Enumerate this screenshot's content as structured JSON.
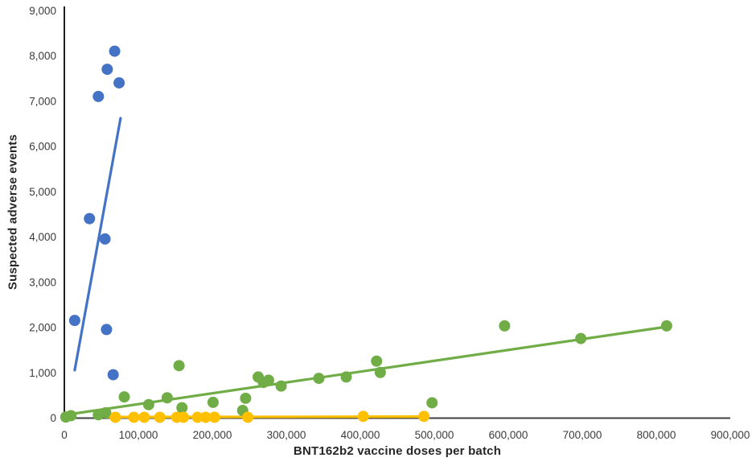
{
  "chart_data": {
    "type": "scatter",
    "title": "",
    "xlabel": "BNT162b2 vaccine doses per batch",
    "ylabel": "Suspected adverse events",
    "xlim": [
      0,
      900000
    ],
    "ylim": [
      0,
      9000
    ],
    "x_ticks": [
      0,
      100000,
      200000,
      300000,
      400000,
      500000,
      600000,
      700000,
      800000,
      900000
    ],
    "y_ticks": [
      0,
      1000,
      2000,
      3000,
      4000,
      5000,
      6000,
      7000,
      8000,
      9000
    ],
    "grid": false,
    "legend": "none",
    "background_color": "#ffffff",
    "x_axis_color": "#404040",
    "y_axis_color": "#1f1f1f",
    "tick_label_color": "#3b3b3b",
    "series": [
      {
        "name": "blue",
        "color": "#4472C4",
        "marker": "circle",
        "marker_radius": 7,
        "trendline": {
          "x": [
            14000,
            76000
          ],
          "y": [
            1050,
            6620
          ]
        },
        "points": [
          [
            14000,
            2150
          ],
          [
            34000,
            4400
          ],
          [
            46000,
            7100
          ],
          [
            55000,
            3950
          ],
          [
            57000,
            1950
          ],
          [
            58000,
            7700
          ],
          [
            66000,
            950
          ],
          [
            68000,
            8100
          ],
          [
            74000,
            7400
          ]
        ]
      },
      {
        "name": "green",
        "color": "#70AD47",
        "marker": "circle",
        "marker_radius": 7,
        "trendline": {
          "x": [
            0,
            814000
          ],
          "y": [
            60,
            2010
          ]
        },
        "points": [
          [
            2000,
            15
          ],
          [
            9000,
            45
          ],
          [
            46000,
            65
          ],
          [
            56000,
            110
          ],
          [
            81000,
            460
          ],
          [
            114000,
            290
          ],
          [
            139000,
            440
          ],
          [
            155000,
            1150
          ],
          [
            159000,
            220
          ],
          [
            201000,
            340
          ],
          [
            241000,
            160
          ],
          [
            245000,
            430
          ],
          [
            262000,
            900
          ],
          [
            269000,
            780
          ],
          [
            276000,
            830
          ],
          [
            293000,
            700
          ],
          [
            344000,
            870
          ],
          [
            381000,
            900
          ],
          [
            422000,
            1250
          ],
          [
            427000,
            1000
          ],
          [
            497000,
            330
          ],
          [
            595000,
            2030
          ],
          [
            698000,
            1750
          ],
          [
            814000,
            2030
          ]
        ]
      },
      {
        "name": "yellow",
        "color": "#FFC000",
        "marker": "circle",
        "marker_radius": 7,
        "trendline": {
          "x": [
            58000,
            490000
          ],
          "y": [
            15,
            25
          ]
        },
        "points": [
          [
            69000,
            10
          ],
          [
            94000,
            10
          ],
          [
            108000,
            10
          ],
          [
            129000,
            10
          ],
          [
            152000,
            10
          ],
          [
            161000,
            10
          ],
          [
            180000,
            10
          ],
          [
            191000,
            10
          ],
          [
            203000,
            10
          ],
          [
            248000,
            10
          ],
          [
            404000,
            30
          ],
          [
            486000,
            30
          ]
        ]
      }
    ]
  }
}
